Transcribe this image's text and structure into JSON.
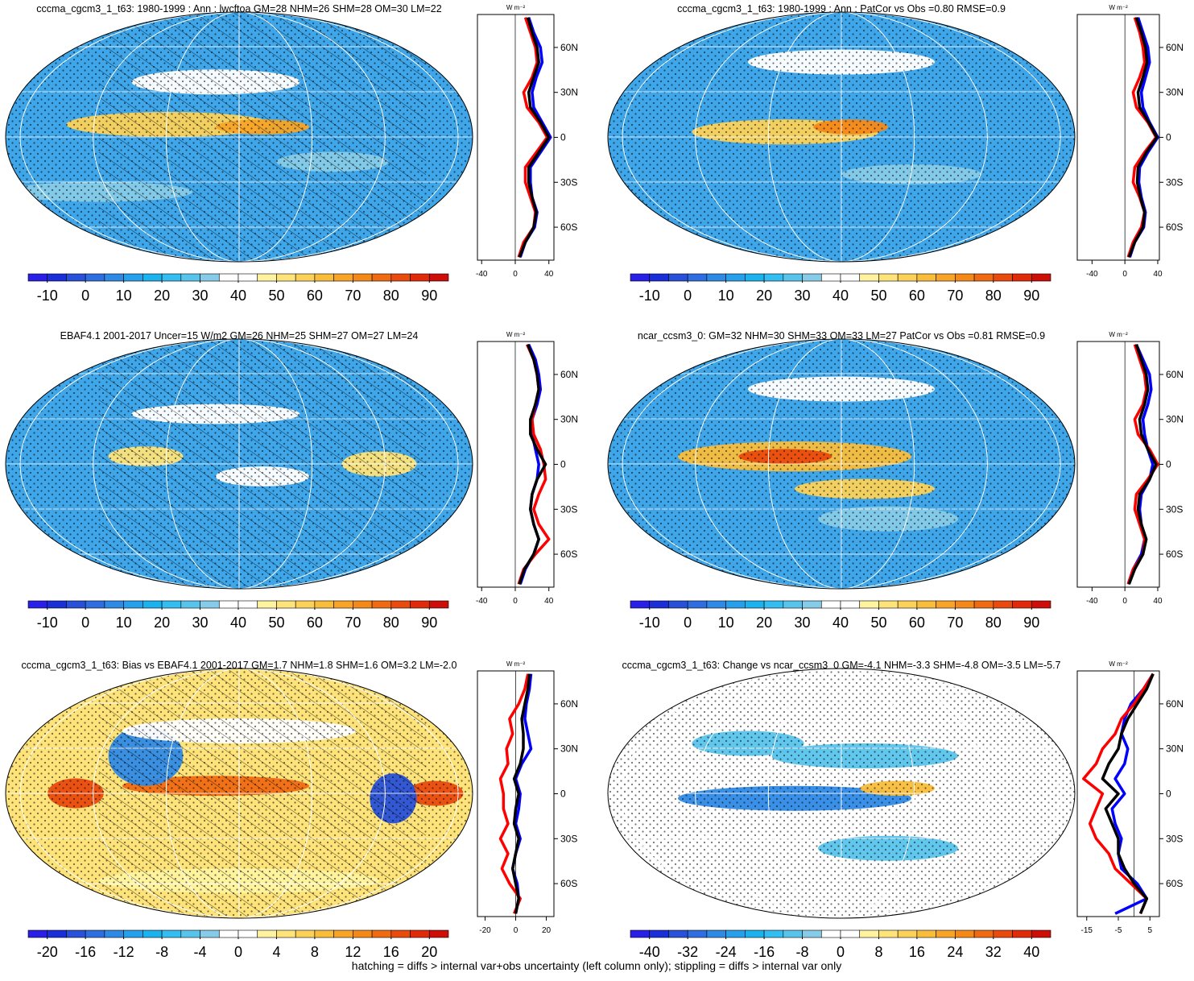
{
  "chart_data": [
    {
      "type": "map",
      "title": "cccma_cgcm3_1_t63: 1980-1999 : Ann : lwcftoa GM=28 NHM=26 SHM=28 OM=30 LM=22",
      "colorbar": {
        "lim": [
          -15,
          95
        ],
        "ticks": [
          -10,
          0,
          10,
          20,
          30,
          40,
          50,
          60,
          70,
          80,
          90
        ],
        "colors": [
          "#2a1fe6",
          "#1a2fd8",
          "#2850d8",
          "#2f6ee0",
          "#2f8ae6",
          "#26a0ea",
          "#1bb2ee",
          "#33bdf0",
          "#58c4ec",
          "#86cbe8",
          "#ffffff",
          "#ffffff",
          "#fff3a0",
          "#fde37a",
          "#fbd15a",
          "#f9bd3c",
          "#f7a428",
          "#f4891a",
          "#ef6a12",
          "#e94a0e",
          "#e02a0a",
          "#cc0d08"
        ]
      },
      "zonal": {
        "type": "line",
        "unit": "W m⁻²",
        "xlim": [
          -45,
          46
        ],
        "xticks": [
          -40,
          0,
          40
        ],
        "ylim": [
          -82,
          82
        ],
        "yticks": [
          {
            "value": 60,
            "label": "60N"
          },
          {
            "value": 30,
            "label": "30N"
          },
          0,
          {
            "value": -30,
            "label": "30S"
          },
          {
            "value": -60,
            "label": "60S"
          }
        ],
        "y": [
          -80,
          -70,
          -60,
          -50,
          -40,
          -30,
          -20,
          -10,
          0,
          10,
          20,
          30,
          40,
          50,
          60,
          70,
          80
        ],
        "series": [
          {
            "color": "#0000ff",
            "values": [
              6,
              12,
              23,
              26,
              20,
              18,
              18,
              30,
              42,
              32,
              22,
              20,
              25,
              32,
              30,
              22,
              16
            ]
          },
          {
            "color": "#ff0000",
            "values": [
              4,
              10,
              22,
              24,
              18,
              12,
              12,
              25,
              38,
              28,
              14,
              10,
              20,
              26,
              24,
              18,
              12
            ]
          },
          {
            "color": "#000000",
            "values": [
              5,
              12,
              22,
              25,
              20,
              16,
              16,
              28,
              40,
              30,
              18,
              16,
              22,
              28,
              26,
              20,
              15
            ]
          }
        ]
      }
    },
    {
      "type": "map",
      "title": "cccma_cgcm3_1_t63: 1980-1999 : Ann : PatCor vs Obs =0.80 RMSE=0.9",
      "colorbar": {
        "lim": [
          -15,
          95
        ],
        "ticks": [
          -10,
          0,
          10,
          20,
          30,
          40,
          50,
          60,
          70,
          80,
          90
        ],
        "colors": [
          "#2a1fe6",
          "#1a2fd8",
          "#2850d8",
          "#2f6ee0",
          "#2f8ae6",
          "#26a0ea",
          "#1bb2ee",
          "#33bdf0",
          "#58c4ec",
          "#86cbe8",
          "#ffffff",
          "#ffffff",
          "#fff3a0",
          "#fde37a",
          "#fbd15a",
          "#f9bd3c",
          "#f7a428",
          "#f4891a",
          "#ef6a12",
          "#e94a0e",
          "#e02a0a",
          "#cc0d08"
        ]
      },
      "zonal": {
        "type": "line",
        "unit": "W m⁻²",
        "xlim": [
          -58,
          42
        ],
        "xticks": [
          -40,
          0,
          40
        ],
        "ylim": [
          -82,
          82
        ],
        "yticks": [
          {
            "value": 60,
            "label": "60N"
          },
          {
            "value": 30,
            "label": "30N"
          },
          0,
          {
            "value": -30,
            "label": "30S"
          },
          {
            "value": -60,
            "label": "60S"
          }
        ],
        "y": [
          -80,
          -70,
          -60,
          -50,
          -40,
          -30,
          -20,
          -10,
          0,
          10,
          20,
          30,
          40,
          50,
          60,
          70,
          80
        ],
        "series": [
          {
            "color": "#0000ff",
            "values": [
              6,
              12,
              23,
              25,
              20,
              17,
              18,
              28,
              40,
              30,
              22,
              20,
              25,
              30,
              28,
              22,
              16
            ]
          },
          {
            "color": "#ff0000",
            "values": [
              4,
              10,
              20,
              24,
              18,
              10,
              12,
              24,
              38,
              28,
              14,
              10,
              18,
              24,
              22,
              18,
              12
            ]
          },
          {
            "color": "#000000",
            "values": [
              5,
              12,
              22,
              24,
              19,
              15,
              16,
              26,
              39,
              29,
              18,
              16,
              22,
              27,
              25,
              20,
              14
            ]
          }
        ]
      }
    },
    {
      "type": "map",
      "title": "EBAF4.1 2001-2017 Uncer=15 W/m2 GM=26 NHM=25 SHM=27 OM=27 LM=24",
      "colorbar": {
        "lim": [
          -15,
          95
        ],
        "ticks": [
          -10,
          0,
          10,
          20,
          30,
          40,
          50,
          60,
          70,
          80,
          90
        ],
        "colors": [
          "#2a1fe6",
          "#1a2fd8",
          "#2850d8",
          "#2f6ee0",
          "#2f8ae6",
          "#26a0ea",
          "#1bb2ee",
          "#33bdf0",
          "#58c4ec",
          "#86cbe8",
          "#ffffff",
          "#ffffff",
          "#fff3a0",
          "#fde37a",
          "#fbd15a",
          "#f9bd3c",
          "#f7a428",
          "#f4891a",
          "#ef6a12",
          "#e94a0e",
          "#e02a0a",
          "#cc0d08"
        ]
      },
      "zonal": {
        "type": "line",
        "unit": "W m⁻²",
        "xlim": [
          -45,
          46
        ],
        "xticks": [
          -40,
          0,
          40
        ],
        "ylim": [
          -82,
          82
        ],
        "yticks": [
          {
            "value": 60,
            "label": "60N"
          },
          {
            "value": 30,
            "label": "30N"
          },
          0,
          {
            "value": -30,
            "label": "30S"
          },
          {
            "value": -60,
            "label": "60S"
          }
        ],
        "y": [
          -80,
          -70,
          -60,
          -50,
          -40,
          -30,
          -20,
          -10,
          0,
          10,
          20,
          30,
          40,
          50,
          60,
          70,
          80
        ],
        "series": [
          {
            "color": "#0000ff",
            "values": [
              6,
              12,
              22,
              28,
              22,
              18,
              20,
              26,
              28,
              24,
              20,
              20,
              26,
              30,
              28,
              24,
              16
            ]
          },
          {
            "color": "#ff0000",
            "values": [
              4,
              10,
              24,
              40,
              28,
              22,
              28,
              36,
              34,
              30,
              22,
              20,
              24,
              28,
              26,
              22,
              14
            ]
          },
          {
            "color": "#000000",
            "values": [
              5,
              11,
              22,
              28,
              22,
              18,
              20,
              26,
              36,
              26,
              18,
              18,
              24,
              28,
              26,
              22,
              15
            ]
          }
        ]
      }
    },
    {
      "type": "map",
      "title": "ncar_ccsm3_0: GM=32 NHM=30 SHM=33 OM=33 LM=27 PatCor vs Obs =0.81 RMSE=0.9",
      "colorbar": {
        "lim": [
          -15,
          95
        ],
        "ticks": [
          -10,
          0,
          10,
          20,
          30,
          40,
          50,
          60,
          70,
          80,
          90
        ],
        "colors": [
          "#2a1fe6",
          "#1a2fd8",
          "#2850d8",
          "#2f6ee0",
          "#2f8ae6",
          "#26a0ea",
          "#1bb2ee",
          "#33bdf0",
          "#58c4ec",
          "#86cbe8",
          "#ffffff",
          "#ffffff",
          "#fff3a0",
          "#fde37a",
          "#fbd15a",
          "#f9bd3c",
          "#f7a428",
          "#f4891a",
          "#ef6a12",
          "#e94a0e",
          "#e02a0a",
          "#cc0d08"
        ]
      },
      "zonal": {
        "type": "line",
        "unit": "W m⁻²",
        "xlim": [
          -58,
          42
        ],
        "xticks": [
          -40,
          0,
          40
        ],
        "ylim": [
          -82,
          82
        ],
        "yticks": [
          {
            "value": 60,
            "label": "60N"
          },
          {
            "value": 30,
            "label": "30N"
          },
          0,
          {
            "value": -30,
            "label": "30S"
          },
          {
            "value": -60,
            "label": "60S"
          }
        ],
        "y": [
          -80,
          -70,
          -60,
          -50,
          -40,
          -30,
          -20,
          -10,
          0,
          10,
          20,
          30,
          40,
          50,
          60,
          70,
          80
        ],
        "series": [
          {
            "color": "#0000ff",
            "values": [
              4,
              10,
              20,
              24,
              20,
              18,
              20,
              30,
              34,
              28,
              24,
              22,
              28,
              32,
              30,
              22,
              14
            ]
          },
          {
            "color": "#ff0000",
            "values": [
              4,
              10,
              22,
              24,
              18,
              12,
              14,
              28,
              40,
              30,
              16,
              12,
              22,
              26,
              24,
              18,
              12
            ]
          },
          {
            "color": "#000000",
            "values": [
              5,
              12,
              22,
              26,
              20,
              16,
              18,
              30,
              38,
              28,
              20,
              18,
              24,
              28,
              26,
              20,
              14
            ]
          }
        ]
      }
    },
    {
      "type": "map",
      "title": "cccma_cgcm3_1_t63: Bias vs EBAF4.1 2001-2017 GM=1.7 NHM=1.8 SHM=1.6 OM=3.2 LM=-2.0",
      "colorbar": {
        "lim": [
          -22,
          22
        ],
        "ticks": [
          -20,
          -16,
          -12,
          -8,
          -4,
          0,
          4,
          8,
          12,
          16,
          20
        ],
        "colors": [
          "#2a1fe6",
          "#1a2fd8",
          "#2850d8",
          "#2f6ee0",
          "#2f8ae6",
          "#26a0ea",
          "#1bb2ee",
          "#33bdf0",
          "#58c4ec",
          "#86cbe8",
          "#ffffff",
          "#ffffff",
          "#fff3a0",
          "#fde37a",
          "#fbd15a",
          "#f9bd3c",
          "#f7a428",
          "#f4891a",
          "#ef6a12",
          "#e94a0e",
          "#e02a0a",
          "#cc0d08"
        ]
      },
      "zonal": {
        "type": "line",
        "unit": "W m⁻²",
        "xlim": [
          -25,
          25
        ],
        "xticks": [
          -20,
          0,
          20
        ],
        "ylim": [
          -82,
          82
        ],
        "yticks": [
          {
            "value": 60,
            "label": "60N"
          },
          {
            "value": 30,
            "label": "30N"
          },
          0,
          {
            "value": -30,
            "label": "30S"
          },
          {
            "value": -60,
            "label": "60S"
          }
        ],
        "y": [
          -80,
          -70,
          -60,
          -50,
          -40,
          -30,
          -20,
          -10,
          0,
          10,
          20,
          30,
          40,
          50,
          60,
          70,
          80
        ],
        "series": [
          {
            "color": "#0000ff",
            "values": [
              0,
              2,
              1,
              -2,
              0,
              3,
              0,
              2,
              3,
              0,
              4,
              10,
              8,
              6,
              7,
              9,
              10
            ]
          },
          {
            "color": "#ff0000",
            "values": [
              -1,
              3,
              -4,
              -9,
              -5,
              -10,
              -5,
              -8,
              -8,
              -10,
              -5,
              -6,
              -2,
              -4,
              2,
              6,
              8
            ]
          },
          {
            "color": "#000000",
            "values": [
              0,
              2,
              0,
              -2,
              0,
              2,
              -1,
              0,
              2,
              -1,
              3,
              5,
              5,
              4,
              6,
              8,
              9
            ]
          }
        ]
      }
    },
    {
      "type": "map",
      "title": "cccma_cgcm3_1_t63: Change vs ncar_ccsm3_0 GM=-4.1 NHM=-3.3 SHM=-4.8 OM=-3.5 LM=-5.7",
      "colorbar": {
        "lim": [
          -44,
          44
        ],
        "ticks": [
          -40,
          -32,
          -24,
          -16,
          -8,
          0,
          8,
          16,
          24,
          32,
          40
        ],
        "colors": [
          "#2a1fe6",
          "#1a2fd8",
          "#2850d8",
          "#2f6ee0",
          "#2f8ae6",
          "#26a0ea",
          "#1bb2ee",
          "#33bdf0",
          "#58c4ec",
          "#86cbe8",
          "#ffffff",
          "#ffffff",
          "#fff3a0",
          "#fde37a",
          "#fbd15a",
          "#f9bd3c",
          "#f7a428",
          "#f4891a",
          "#ef6a12",
          "#e94a0e",
          "#e02a0a",
          "#cc0d08"
        ]
      },
      "zonal": {
        "type": "line",
        "unit": "W m⁻²",
        "xlim": [
          -18,
          8
        ],
        "xticks": [
          -15,
          -5,
          5
        ],
        "ylim": [
          -82,
          82
        ],
        "yticks": [
          {
            "value": 60,
            "label": "60N"
          },
          {
            "value": 30,
            "label": "30N"
          },
          0,
          {
            "value": -30,
            "label": "30S"
          },
          {
            "value": -60,
            "label": "60S"
          }
        ],
        "y": [
          -80,
          -70,
          -60,
          -50,
          -40,
          -30,
          -20,
          -10,
          0,
          10,
          20,
          30,
          40,
          50,
          60,
          70,
          80
        ],
        "series": [
          {
            "color": "#0000ff",
            "values": [
              -6,
              4,
              1,
              -4,
              -5,
              -4,
              -6,
              -7,
              -3,
              -6,
              -3,
              -2,
              -4,
              -3,
              -1,
              3,
              6
            ]
          },
          {
            "color": "#ff0000",
            "values": [
              2,
              4,
              -1,
              -6,
              -8,
              -12,
              -14,
              -12,
              -10,
              -16,
              -12,
              -10,
              -6,
              -4,
              0,
              3,
              6
            ]
          },
          {
            "color": "#000000",
            "values": [
              2,
              4,
              0,
              -3,
              -5,
              -5,
              -7,
              -9,
              -5,
              -10,
              -8,
              -5,
              -4,
              -2,
              1,
              4,
              6
            ]
          }
        ]
      }
    }
  ],
  "footnote": "hatching = diffs > internal var+obs uncertainty (left column only); stippling = diffs > internal var only"
}
